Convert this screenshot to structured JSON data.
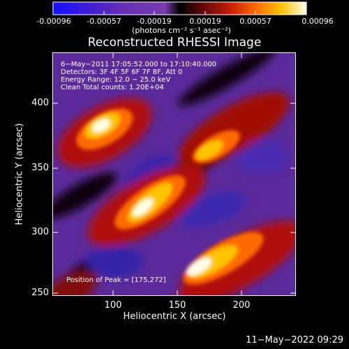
{
  "colorbar": {
    "ticks": [
      "-0.00096",
      "-0.00057",
      "-0.00019",
      "0.00019",
      "0.00057",
      "0.00096"
    ],
    "units": "(photons cm⁻² s⁻¹ asec⁻²)",
    "colors": [
      "#0000ff",
      "#3a18d8",
      "#6a2fb8",
      "#7c3ab0",
      "#000000",
      "#5a0a0a",
      "#c01a0a",
      "#ff5a00",
      "#ffb000",
      "#ffff66",
      "#ffffff"
    ]
  },
  "image": {
    "title": "Reconstructed RHESSI Image",
    "info": [
      "6−May−2011 17:05:52.000 to 17:10:40.000",
      "Detectors: 3F 4F 5F 6F 7F 8F, Att 0",
      "Energy Range: 12.0 − 25.0 keV",
      "Clean    Total counts: 1.20E+04"
    ],
    "peak": "Position of Peak = [175,272]"
  },
  "chart_data": {
    "type": "heatmap",
    "title": "Reconstructed RHESSI Image",
    "xlabel": "Heliocentric X (arcsec)",
    "ylabel": "Heliocentric Y (arcsec)",
    "xlim": [
      55,
      240
    ],
    "ylim": [
      248,
      432
    ],
    "xticks": [
      "100",
      "150",
      "200"
    ],
    "yticks": [
      "400",
      "350",
      "300",
      "250"
    ],
    "peak_position": [
      175,
      272
    ]
  },
  "footer": {
    "timestamp": "11−May−2022 09:29"
  }
}
